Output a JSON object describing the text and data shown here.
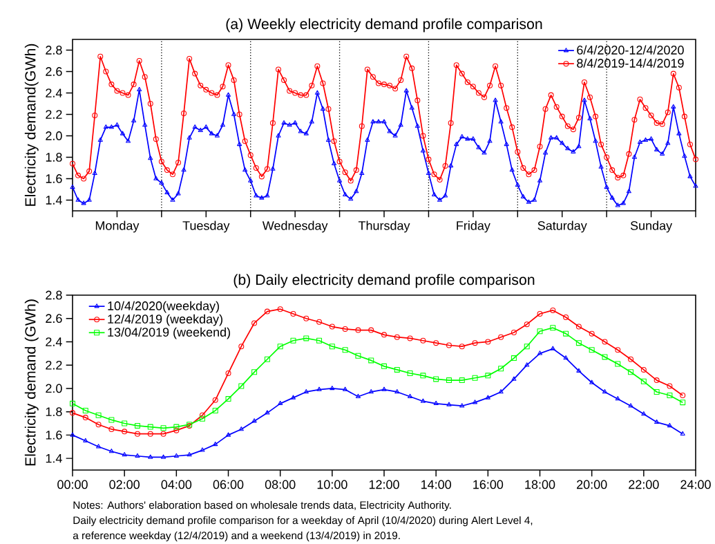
{
  "chart_data": [
    {
      "type": "line",
      "title": "(a) Weekly electricity demand profile comparison",
      "ylabel": "Electricity demand(GWh)",
      "categories": [
        null,
        null,
        null,
        null,
        null,
        null,
        null,
        null,
        "Monday",
        null,
        null,
        null,
        null,
        null,
        null,
        null,
        null,
        null,
        null,
        null,
        null,
        null,
        null,
        null,
        "Tuesday",
        null,
        null,
        null,
        null,
        null,
        null,
        null,
        null,
        null,
        null,
        null,
        null,
        null,
        null,
        null,
        "Wednesday",
        null,
        null,
        null,
        null,
        null,
        null,
        null,
        null,
        null,
        null,
        null,
        null,
        null,
        null,
        null,
        "Thursday",
        null,
        null,
        null,
        null,
        null,
        null,
        null,
        null,
        null,
        null,
        null,
        null,
        null,
        null,
        null,
        "Friday",
        null,
        null,
        null,
        null,
        null,
        null,
        null,
        null,
        null,
        null,
        null,
        null,
        null,
        null,
        null,
        "Saturday",
        null,
        null,
        null,
        null,
        null,
        null,
        null,
        null,
        null,
        null,
        null,
        null,
        null,
        null,
        null,
        "Sunday",
        null,
        null,
        null,
        null,
        null,
        null,
        null,
        null
      ],
      "series": [
        {
          "name": "6/4/2020-12/4/2020",
          "color": "#0000ff",
          "marker": "triangle",
          "values": [
            1.52,
            1.4,
            1.37,
            1.4,
            1.65,
            1.96,
            2.08,
            2.08,
            2.1,
            2.02,
            1.95,
            2.14,
            2.43,
            2.1,
            1.79,
            1.6,
            1.56,
            1.47,
            1.4,
            1.46,
            1.68,
            1.98,
            2.08,
            2.05,
            2.08,
            2.02,
            2.0,
            2.1,
            2.38,
            2.2,
            1.92,
            1.68,
            1.58,
            1.44,
            1.42,
            1.44,
            1.69,
            2.0,
            2.12,
            2.1,
            2.12,
            2.04,
            2.02,
            2.13,
            2.4,
            2.25,
            1.96,
            1.74,
            1.58,
            1.45,
            1.41,
            1.48,
            1.65,
            1.96,
            2.13,
            2.13,
            2.13,
            2.04,
            2.0,
            2.1,
            2.42,
            2.26,
            2.09,
            1.86,
            1.65,
            1.45,
            1.4,
            1.44,
            1.72,
            1.92,
            1.99,
            1.97,
            1.97,
            1.89,
            1.84,
            1.95,
            2.33,
            2.13,
            1.92,
            1.68,
            1.54,
            1.43,
            1.38,
            1.4,
            1.58,
            1.84,
            1.98,
            1.98,
            1.93,
            1.88,
            1.85,
            1.9,
            2.33,
            2.16,
            1.95,
            1.71,
            1.52,
            1.42,
            1.35,
            1.37,
            1.48,
            1.8,
            1.94,
            1.96,
            1.97,
            1.87,
            1.83,
            1.93,
            2.27,
            2.02,
            1.81,
            1.62,
            1.53
          ]
        },
        {
          "name": "8/4/2019-14/4/2019",
          "color": "#ff0000",
          "marker": "circle",
          "values": [
            1.74,
            1.63,
            1.6,
            1.67,
            2.19,
            2.74,
            2.6,
            2.48,
            2.42,
            2.4,
            2.38,
            2.48,
            2.7,
            2.55,
            2.3,
            1.97,
            1.76,
            1.68,
            1.64,
            1.75,
            2.21,
            2.72,
            2.58,
            2.47,
            2.43,
            2.4,
            2.38,
            2.46,
            2.66,
            2.52,
            2.2,
            1.95,
            1.82,
            1.7,
            1.62,
            1.69,
            2.12,
            2.62,
            2.52,
            2.42,
            2.4,
            2.38,
            2.38,
            2.47,
            2.65,
            2.49,
            2.25,
            1.95,
            1.76,
            1.66,
            1.58,
            1.68,
            2.09,
            2.62,
            2.55,
            2.49,
            2.48,
            2.47,
            2.44,
            2.52,
            2.74,
            2.63,
            2.33,
            2.0,
            1.78,
            1.64,
            1.59,
            1.72,
            2.12,
            2.66,
            2.58,
            2.5,
            2.46,
            2.4,
            2.36,
            2.47,
            2.65,
            2.47,
            2.26,
            2.08,
            1.85,
            1.7,
            1.64,
            1.68,
            1.9,
            2.25,
            2.38,
            2.27,
            2.18,
            2.09,
            2.06,
            2.17,
            2.5,
            2.36,
            2.18,
            1.92,
            1.8,
            1.68,
            1.61,
            1.63,
            1.83,
            2.15,
            2.34,
            2.26,
            2.19,
            2.12,
            2.11,
            2.22,
            2.58,
            2.45,
            2.18,
            1.92,
            1.78
          ]
        }
      ],
      "ylim": [
        1.3,
        2.9
      ],
      "yticks": [
        1.4,
        1.6,
        1.8,
        {
          "value": 2,
          "label": "2.0"
        },
        2.2,
        2.4,
        2.6,
        2.8
      ],
      "legend": "top right",
      "grid": "x"
    },
    {
      "type": "line",
      "title": "(b) Daily electricity demand profile comparison",
      "ylabel": "Electricity demand (GWh)",
      "x": [
        0,
        0.5,
        1,
        1.5,
        2,
        2.5,
        3,
        3.5,
        4,
        4.5,
        5,
        5.5,
        6,
        6.5,
        7,
        7.5,
        8,
        8.5,
        9,
        9.5,
        10,
        10.5,
        11,
        11.5,
        12,
        12.5,
        13,
        13.5,
        14,
        14.5,
        15,
        15.5,
        16,
        16.5,
        17,
        17.5,
        18,
        18.5,
        19,
        19.5,
        20,
        20.5,
        21,
        21.5,
        22,
        22.5,
        23,
        23.5
      ],
      "series": [
        {
          "name": "10/4/2020(weekday)",
          "color": "#0000ff",
          "marker": "triangle",
          "values": [
            1.6,
            1.55,
            1.5,
            1.46,
            1.43,
            1.42,
            1.41,
            1.41,
            1.42,
            1.43,
            1.47,
            1.52,
            1.6,
            1.65,
            1.72,
            1.79,
            1.87,
            1.92,
            1.97,
            1.99,
            2.0,
            1.99,
            1.93,
            1.97,
            1.99,
            1.97,
            1.93,
            1.89,
            1.87,
            1.86,
            1.85,
            1.88,
            1.92,
            1.97,
            2.08,
            2.2,
            2.3,
            2.34,
            2.26,
            2.15,
            2.05,
            1.97,
            1.91,
            1.85,
            1.78,
            1.71,
            1.68,
            1.61
          ]
        },
        {
          "name": "12/4/2019 (weekday)",
          "color": "#ff0000",
          "marker": "circle",
          "values": [
            1.79,
            1.75,
            1.69,
            1.65,
            1.63,
            1.61,
            1.61,
            1.61,
            1.64,
            1.68,
            1.77,
            1.9,
            2.13,
            2.36,
            2.56,
            2.66,
            2.68,
            2.64,
            2.6,
            2.57,
            2.53,
            2.51,
            2.5,
            2.5,
            2.46,
            2.44,
            2.43,
            2.41,
            2.39,
            2.37,
            2.36,
            2.39,
            2.4,
            2.44,
            2.48,
            2.55,
            2.64,
            2.67,
            2.61,
            2.53,
            2.47,
            2.4,
            2.33,
            2.25,
            2.16,
            2.07,
            2.02,
            1.94
          ]
        },
        {
          "name": "13/04/2019 (weekend)",
          "color": "#00ff00",
          "marker": "square",
          "values": [
            1.87,
            1.81,
            1.77,
            1.73,
            1.7,
            1.68,
            1.67,
            1.66,
            1.67,
            1.69,
            1.74,
            1.81,
            1.91,
            2.02,
            2.14,
            2.25,
            2.36,
            2.41,
            2.43,
            2.41,
            2.36,
            2.33,
            2.28,
            2.24,
            2.19,
            2.16,
            2.13,
            2.11,
            2.08,
            2.07,
            2.07,
            2.09,
            2.11,
            2.17,
            2.26,
            2.36,
            2.49,
            2.52,
            2.47,
            2.39,
            2.33,
            2.27,
            2.21,
            2.14,
            2.06,
            1.97,
            1.94,
            1.88
          ]
        }
      ],
      "xlim": [
        0,
        24
      ],
      "ylim": [
        1.3,
        2.8
      ],
      "xticks": [
        {
          "value": 0,
          "label": "00:00"
        },
        {
          "value": 2,
          "label": "02:00"
        },
        {
          "value": 4,
          "label": "04:00"
        },
        {
          "value": 6,
          "label": "06:00"
        },
        {
          "value": 8,
          "label": "08:00"
        },
        {
          "value": 10,
          "label": "10:00"
        },
        {
          "value": 12,
          "label": "12:00"
        },
        {
          "value": 14,
          "label": "14:00"
        },
        {
          "value": 16,
          "label": "16:00"
        },
        {
          "value": 18,
          "label": "18:00"
        },
        {
          "value": 20,
          "label": "20:00"
        },
        {
          "value": 22,
          "label": "22:00"
        },
        {
          "value": 24,
          "label": "24:00"
        }
      ],
      "yticks": [
        1.4,
        1.6,
        1.8,
        {
          "value": 2,
          "label": "2.0"
        },
        2.2,
        2.4,
        2.6,
        2.8
      ],
      "legend": "top left",
      "grid": false,
      "annotations": [
        "Notes: Authors' elaboration based on wholesale trends data, Electricity Authority.",
        "Daily electricity demand profile comparison for a weekday of April (10/4/2020) during Alert Level 4,",
        "a reference weekday (12/4/2019) and a weekend (13/4/2019) in 2019."
      ]
    }
  ]
}
